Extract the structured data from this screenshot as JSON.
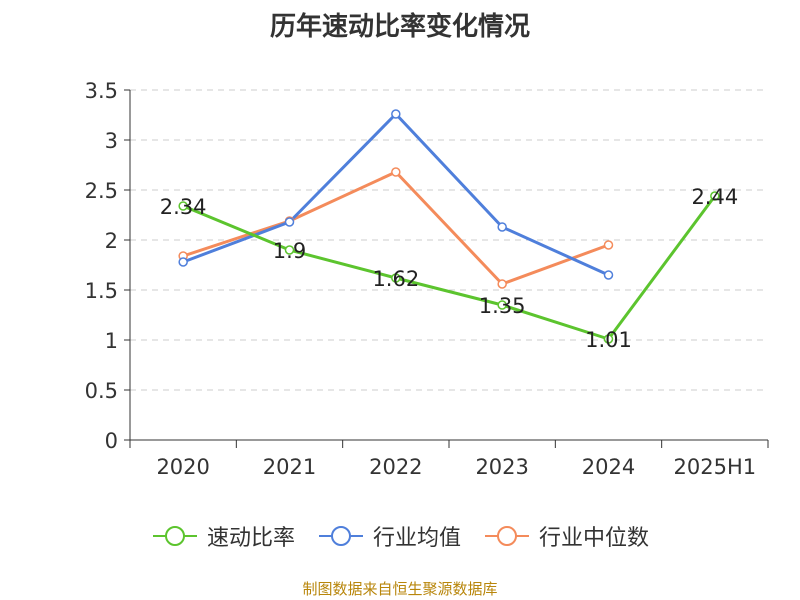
{
  "chart_data": {
    "type": "line",
    "title": "历年速动比率变化情况",
    "categories": [
      "2020",
      "2021",
      "2022",
      "2023",
      "2024",
      "2025H1"
    ],
    "ylim": [
      0,
      3.5
    ],
    "yticks": [
      "0",
      "0.5",
      "1",
      "1.5",
      "2",
      "2.5",
      "3",
      "3.5"
    ],
    "grid": true,
    "legend_position": "bottom",
    "series": [
      {
        "name": "速动比率",
        "color": "#5cc42e",
        "values": [
          2.34,
          1.9,
          1.62,
          1.35,
          1.01,
          2.44
        ],
        "labels": [
          "2.34",
          "1.9",
          "1.62",
          "1.35",
          "1.01",
          "2.44"
        ]
      },
      {
        "name": "行业均值",
        "color": "#4f7fdb",
        "values": [
          1.78,
          2.18,
          3.26,
          2.13,
          1.65,
          null
        ]
      },
      {
        "name": "行业中位数",
        "color": "#f48b5b",
        "values": [
          1.84,
          2.19,
          2.68,
          1.56,
          1.95,
          null
        ]
      }
    ]
  },
  "source": "制图数据来自恒生聚源数据库"
}
